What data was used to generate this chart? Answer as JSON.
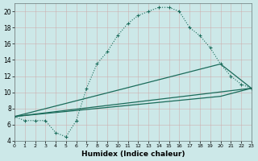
{
  "xlabel": "Humidex (Indice chaleur)",
  "background_color": "#cce8e8",
  "grid_color": "#aacccc",
  "line_color": "#1a6b5a",
  "xlim": [
    0,
    23
  ],
  "ylim": [
    4,
    21
  ],
  "yticks": [
    4,
    6,
    8,
    10,
    12,
    14,
    16,
    18,
    20
  ],
  "xticks": [
    0,
    1,
    2,
    3,
    4,
    5,
    6,
    7,
    8,
    9,
    10,
    11,
    12,
    13,
    14,
    15,
    16,
    17,
    18,
    19,
    20,
    21,
    22,
    23
  ],
  "curve_x": [
    0,
    1,
    2,
    3,
    4,
    5,
    6,
    7,
    8,
    9,
    10,
    11,
    12,
    13,
    14,
    15,
    16,
    17,
    18,
    19,
    20,
    21,
    22,
    23
  ],
  "curve_y": [
    7,
    6.5,
    6.5,
    6.5,
    5,
    4.5,
    6.5,
    10.5,
    13.5,
    15,
    17,
    18.5,
    19.5,
    20,
    20.5,
    20.5,
    20,
    18,
    17,
    15.5,
    13.5,
    12,
    11,
    10.5
  ],
  "line1_x": [
    0,
    23
  ],
  "line1_y": [
    7,
    10.5
  ],
  "line2_x": [
    0,
    20,
    23
  ],
  "line2_y": [
    7,
    13.5,
    10.5
  ],
  "line3_x": [
    0,
    20,
    23
  ],
  "line3_y": [
    7,
    9.5,
    10.5
  ]
}
